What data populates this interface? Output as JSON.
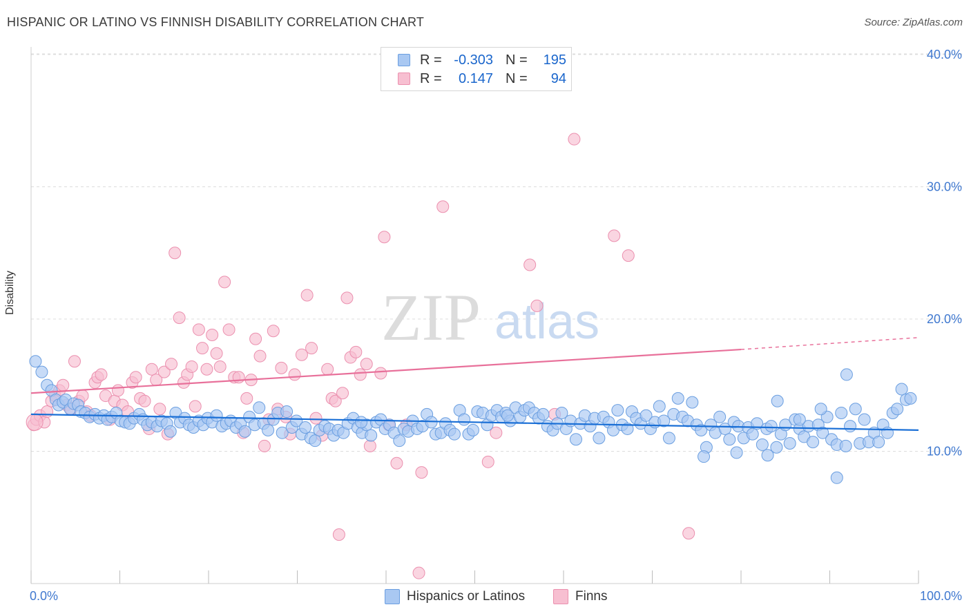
{
  "title": "HISPANIC OR LATINO VS FINNISH DISABILITY CORRELATION CHART",
  "source": "Source: ZipAtlas.com",
  "watermark": {
    "zip": "ZIP",
    "atlas": "atlas"
  },
  "legend": {
    "rows": [
      {
        "r_label": "R =",
        "r_value": "-0.303",
        "n_label": "N =",
        "n_value": "195"
      },
      {
        "r_label": "R =",
        "r_value": "0.147",
        "n_label": "N =",
        "n_value": "94"
      }
    ]
  },
  "colors": {
    "blue_fill": "#a9c8f2",
    "blue_stroke": "#6a9ee0",
    "blue_line": "#1a6fd6",
    "pink_fill": "#f7bfd1",
    "pink_stroke": "#eb8fae",
    "pink_line": "#e8709a",
    "tick_text": "#3f78cf",
    "grid": "#dcdcdc"
  },
  "chart_data": {
    "type": "scatter",
    "title": "HISPANIC OR LATINO VS FINNISH DISABILITY CORRELATION CHART",
    "xlabel": "",
    "ylabel": "Disability",
    "xlim": [
      0,
      100
    ],
    "ylim": [
      0,
      42
    ],
    "x_tick_labels": [
      "0.0%",
      "100.0%"
    ],
    "y_ticks": [
      10,
      20,
      30,
      40
    ],
    "y_tick_labels": [
      "10.0%",
      "20.0%",
      "30.0%",
      "40.0%"
    ],
    "legend_position": "bottom",
    "series": [
      {
        "name": "Hispanics or Latinos",
        "r": -0.303,
        "n": 195,
        "trend": {
          "x": [
            0,
            100
          ],
          "y": [
            12.8,
            11.6
          ]
        },
        "points": [
          [
            0.5,
            16.8
          ],
          [
            1.2,
            16.0
          ],
          [
            1.8,
            15.0
          ],
          [
            2.3,
            14.6
          ],
          [
            2.8,
            13.9
          ],
          [
            3.1,
            13.5
          ],
          [
            3.6,
            13.7
          ],
          [
            3.9,
            13.9
          ],
          [
            4.4,
            13.2
          ],
          [
            4.8,
            13.6
          ],
          [
            5.3,
            13.5
          ],
          [
            5.6,
            13.0
          ],
          [
            6.1,
            12.9
          ],
          [
            6.6,
            12.6
          ],
          [
            7.2,
            12.8
          ],
          [
            7.7,
            12.5
          ],
          [
            8.2,
            12.7
          ],
          [
            8.6,
            12.4
          ],
          [
            9.1,
            12.6
          ],
          [
            9.6,
            12.9
          ],
          [
            10.1,
            12.3
          ],
          [
            10.6,
            12.2
          ],
          [
            11.1,
            12.1
          ],
          [
            11.6,
            12.5
          ],
          [
            12.2,
            12.8
          ],
          [
            12.6,
            12.4
          ],
          [
            13.1,
            12.0
          ],
          [
            13.6,
            12.2
          ],
          [
            14.2,
            11.9
          ],
          [
            14.7,
            12.3
          ],
          [
            15.3,
            12.1
          ],
          [
            15.7,
            11.5
          ],
          [
            16.3,
            12.9
          ],
          [
            16.8,
            12.2
          ],
          [
            17.3,
            12.5
          ],
          [
            17.8,
            12.0
          ],
          [
            18.3,
            11.8
          ],
          [
            18.9,
            12.3
          ],
          [
            19.4,
            12.0
          ],
          [
            19.9,
            12.5
          ],
          [
            20.4,
            12.2
          ],
          [
            20.9,
            12.7
          ],
          [
            21.5,
            11.9
          ],
          [
            22.0,
            12.1
          ],
          [
            22.5,
            12.3
          ],
          [
            23.1,
            11.8
          ],
          [
            23.6,
            12.1
          ],
          [
            24.1,
            11.5
          ],
          [
            24.6,
            12.6
          ],
          [
            25.2,
            12.0
          ],
          [
            25.7,
            13.3
          ],
          [
            26.2,
            12.1
          ],
          [
            26.7,
            11.6
          ],
          [
            27.3,
            12.4
          ],
          [
            27.8,
            12.9
          ],
          [
            28.3,
            11.4
          ],
          [
            28.8,
            13.0
          ],
          [
            29.4,
            11.8
          ],
          [
            29.9,
            12.3
          ],
          [
            30.5,
            11.3
          ],
          [
            30.9,
            11.8
          ],
          [
            31.5,
            11.0
          ],
          [
            32.0,
            10.8
          ],
          [
            32.5,
            11.6
          ],
          [
            33.1,
            11.9
          ],
          [
            33.6,
            11.7
          ],
          [
            34.1,
            11.2
          ],
          [
            34.6,
            11.6
          ],
          [
            35.2,
            11.4
          ],
          [
            35.7,
            12.1
          ],
          [
            36.3,
            12.5
          ],
          [
            36.8,
            11.8
          ],
          [
            37.3,
            11.4
          ],
          [
            37.8,
            12.0
          ],
          [
            38.3,
            11.2
          ],
          [
            38.9,
            12.2
          ],
          [
            39.4,
            12.4
          ],
          [
            39.9,
            11.7
          ],
          [
            40.4,
            12.0
          ],
          [
            40.9,
            11.4
          ],
          [
            41.5,
            10.8
          ],
          [
            42.0,
            11.7
          ],
          [
            42.5,
            11.5
          ],
          [
            43.0,
            12.3
          ],
          [
            43.5,
            11.7
          ],
          [
            44.1,
            11.9
          ],
          [
            44.6,
            12.8
          ],
          [
            45.1,
            12.2
          ],
          [
            45.6,
            11.3
          ],
          [
            46.2,
            11.4
          ],
          [
            46.7,
            12.1
          ],
          [
            47.2,
            11.6
          ],
          [
            47.7,
            11.3
          ],
          [
            48.3,
            13.1
          ],
          [
            48.8,
            12.4
          ],
          [
            49.3,
            11.3
          ],
          [
            49.8,
            11.6
          ],
          [
            50.3,
            13.0
          ],
          [
            50.9,
            12.9
          ],
          [
            51.4,
            12.0
          ],
          [
            51.9,
            12.7
          ],
          [
            52.5,
            13.1
          ],
          [
            53.0,
            12.6
          ],
          [
            53.5,
            12.9
          ],
          [
            54.0,
            12.3
          ],
          [
            54.6,
            13.3
          ],
          [
            55.1,
            12.6
          ],
          [
            55.6,
            13.1
          ],
          [
            56.1,
            13.3
          ],
          [
            56.7,
            12.9
          ],
          [
            57.2,
            12.5
          ],
          [
            57.7,
            12.8
          ],
          [
            58.2,
            11.9
          ],
          [
            58.8,
            11.6
          ],
          [
            59.3,
            12.1
          ],
          [
            59.8,
            12.9
          ],
          [
            60.3,
            11.7
          ],
          [
            60.8,
            12.3
          ],
          [
            61.4,
            10.9
          ],
          [
            61.9,
            12.1
          ],
          [
            62.4,
            12.7
          ],
          [
            63.0,
            11.9
          ],
          [
            63.5,
            12.5
          ],
          [
            64.0,
            11.0
          ],
          [
            64.5,
            12.6
          ],
          [
            65.1,
            12.2
          ],
          [
            65.6,
            11.6
          ],
          [
            66.1,
            13.1
          ],
          [
            66.6,
            12.0
          ],
          [
            67.2,
            11.7
          ],
          [
            67.7,
            13.0
          ],
          [
            68.2,
            12.5
          ],
          [
            68.7,
            12.1
          ],
          [
            69.3,
            12.7
          ],
          [
            69.8,
            11.7
          ],
          [
            70.3,
            12.2
          ],
          [
            70.8,
            13.4
          ],
          [
            71.3,
            12.3
          ],
          [
            71.9,
            11.0
          ],
          [
            72.4,
            12.8
          ],
          [
            72.9,
            14.0
          ],
          [
            73.4,
            12.6
          ],
          [
            74.0,
            12.3
          ],
          [
            74.5,
            13.7
          ],
          [
            75.0,
            12.0
          ],
          [
            75.5,
            11.6
          ],
          [
            76.1,
            10.3
          ],
          [
            76.6,
            12.0
          ],
          [
            77.1,
            11.4
          ],
          [
            77.6,
            12.6
          ],
          [
            78.2,
            11.7
          ],
          [
            78.7,
            10.9
          ],
          [
            79.2,
            12.2
          ],
          [
            79.7,
            11.9
          ],
          [
            80.3,
            11.0
          ],
          [
            80.8,
            11.8
          ],
          [
            81.3,
            11.3
          ],
          [
            81.8,
            12.1
          ],
          [
            82.4,
            10.5
          ],
          [
            82.9,
            11.7
          ],
          [
            83.4,
            11.9
          ],
          [
            84.0,
            10.3
          ],
          [
            84.5,
            11.3
          ],
          [
            85.0,
            12.0
          ],
          [
            85.5,
            10.6
          ],
          [
            86.1,
            12.4
          ],
          [
            86.6,
            11.7
          ],
          [
            87.1,
            11.1
          ],
          [
            87.6,
            11.9
          ],
          [
            88.1,
            10.7
          ],
          [
            88.7,
            12.0
          ],
          [
            89.2,
            11.4
          ],
          [
            89.7,
            12.6
          ],
          [
            90.2,
            10.9
          ],
          [
            90.8,
            10.5
          ],
          [
            91.3,
            12.9
          ],
          [
            91.8,
            10.4
          ],
          [
            92.3,
            11.9
          ],
          [
            92.9,
            13.2
          ],
          [
            93.4,
            10.6
          ],
          [
            93.9,
            12.4
          ],
          [
            94.4,
            10.7
          ],
          [
            95.0,
            11.4
          ],
          [
            95.5,
            10.7
          ],
          [
            96.0,
            12.0
          ],
          [
            96.5,
            11.4
          ],
          [
            97.1,
            12.9
          ],
          [
            97.6,
            13.2
          ],
          [
            98.1,
            14.7
          ],
          [
            98.6,
            13.9
          ],
          [
            99.1,
            14.0
          ],
          [
            91.9,
            15.8
          ],
          [
            90.8,
            8.0
          ],
          [
            75.8,
            9.6
          ],
          [
            79.5,
            9.9
          ],
          [
            83.0,
            9.7
          ],
          [
            84.1,
            13.8
          ],
          [
            89.0,
            13.2
          ],
          [
            86.6,
            12.4
          ],
          [
            53.7,
            12.7
          ],
          [
            37.2,
            12.2
          ]
        ]
      },
      {
        "name": "Finns",
        "r": 0.147,
        "n": 94,
        "trend": {
          "x": [
            0,
            80
          ],
          "y": [
            14.4,
            17.7
          ]
        },
        "trend_dashed": {
          "x": [
            80,
            100
          ],
          "y": [
            17.7,
            18.6
          ]
        },
        "points": [
          [
            0.3,
            12.0
          ],
          [
            0.6,
            12.4
          ],
          [
            1.0,
            12.7
          ],
          [
            1.5,
            12.2
          ],
          [
            1.8,
            13.0
          ],
          [
            2.3,
            13.8
          ],
          [
            2.7,
            14.2
          ],
          [
            3.2,
            14.6
          ],
          [
            3.6,
            15.0
          ],
          [
            4.0,
            13.5
          ],
          [
            4.5,
            13.2
          ],
          [
            4.9,
            16.8
          ],
          [
            5.4,
            13.8
          ],
          [
            5.8,
            14.2
          ],
          [
            6.3,
            13.0
          ],
          [
            6.7,
            12.7
          ],
          [
            7.2,
            15.2
          ],
          [
            7.5,
            15.6
          ],
          [
            7.9,
            15.8
          ],
          [
            8.4,
            14.2
          ],
          [
            8.9,
            12.4
          ],
          [
            9.4,
            13.8
          ],
          [
            9.8,
            14.6
          ],
          [
            10.3,
            13.5
          ],
          [
            10.9,
            13.0
          ],
          [
            11.4,
            15.2
          ],
          [
            11.8,
            15.6
          ],
          [
            12.3,
            14.0
          ],
          [
            12.8,
            13.8
          ],
          [
            13.3,
            11.7
          ],
          [
            13.6,
            16.2
          ],
          [
            14.1,
            15.4
          ],
          [
            14.5,
            13.2
          ],
          [
            15.0,
            16.0
          ],
          [
            15.4,
            11.3
          ],
          [
            15.8,
            16.6
          ],
          [
            16.2,
            25.0
          ],
          [
            16.7,
            20.1
          ],
          [
            17.2,
            15.2
          ],
          [
            17.6,
            15.8
          ],
          [
            18.1,
            16.4
          ],
          [
            18.5,
            13.4
          ],
          [
            18.9,
            19.2
          ],
          [
            19.3,
            17.8
          ],
          [
            19.8,
            16.2
          ],
          [
            20.4,
            18.8
          ],
          [
            20.9,
            17.4
          ],
          [
            21.3,
            16.4
          ],
          [
            21.8,
            22.8
          ],
          [
            22.3,
            19.2
          ],
          [
            22.9,
            15.6
          ],
          [
            23.4,
            15.6
          ],
          [
            23.9,
            11.4
          ],
          [
            24.3,
            14.0
          ],
          [
            24.8,
            15.4
          ],
          [
            25.3,
            18.5
          ],
          [
            25.8,
            17.2
          ],
          [
            26.3,
            10.4
          ],
          [
            26.8,
            12.4
          ],
          [
            27.3,
            19.1
          ],
          [
            27.8,
            13.2
          ],
          [
            28.2,
            16.3
          ],
          [
            28.7,
            12.6
          ],
          [
            29.2,
            11.3
          ],
          [
            29.7,
            15.8
          ],
          [
            30.5,
            17.3
          ],
          [
            31.1,
            21.8
          ],
          [
            31.6,
            17.8
          ],
          [
            32.1,
            12.5
          ],
          [
            32.8,
            11.2
          ],
          [
            33.4,
            16.2
          ],
          [
            33.9,
            14.0
          ],
          [
            34.3,
            13.8
          ],
          [
            35.1,
            14.4
          ],
          [
            35.6,
            21.6
          ],
          [
            36.0,
            17.1
          ],
          [
            36.6,
            17.5
          ],
          [
            37.1,
            15.8
          ],
          [
            37.8,
            16.6
          ],
          [
            38.2,
            10.4
          ],
          [
            39.4,
            15.9
          ],
          [
            39.8,
            26.2
          ],
          [
            40.3,
            12.0
          ],
          [
            41.2,
            9.1
          ],
          [
            42.3,
            12.0
          ],
          [
            43.7,
            0.8
          ],
          [
            44.0,
            8.4
          ],
          [
            46.4,
            28.5
          ],
          [
            51.5,
            9.2
          ],
          [
            52.4,
            11.4
          ],
          [
            56.2,
            24.1
          ],
          [
            57.0,
            21.0
          ],
          [
            59.0,
            12.8
          ],
          [
            61.2,
            33.6
          ],
          [
            65.7,
            26.3
          ],
          [
            67.3,
            24.8
          ],
          [
            74.1,
            3.8
          ],
          [
            34.7,
            3.7
          ]
        ]
      }
    ]
  },
  "bottom_legend": [
    {
      "label": "Hispanics or Latinos"
    },
    {
      "label": "Finns"
    }
  ]
}
